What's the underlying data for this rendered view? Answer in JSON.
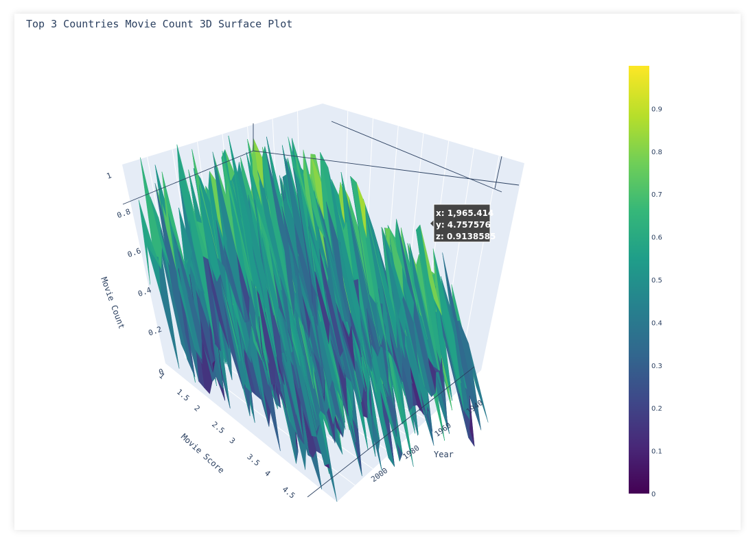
{
  "title": "Top 3 Countries Movie Count 3D Surface Plot",
  "chart_data": {
    "type": "surface",
    "title": "Top 3 Countries Movie Count 3D Surface Plot",
    "x_axis": {
      "label": "Year",
      "range": [
        1930,
        2010
      ],
      "ticks": [
        "1940",
        "1960",
        "1980",
        "2000"
      ]
    },
    "y_axis": {
      "label": "Movie Score",
      "range": [
        1,
        4.8
      ],
      "ticks": [
        "1",
        "1.5",
        "2",
        "2.5",
        "3",
        "3.5",
        "4",
        "4.5"
      ]
    },
    "z_axis": {
      "label": "Movie Count",
      "range": [
        0,
        1
      ],
      "ticks": [
        "0",
        "0.2",
        "0.4",
        "0.6",
        "0.8",
        "1"
      ]
    },
    "colorscale": "Viridis",
    "colorbar": {
      "range": [
        0,
        1
      ],
      "ticks": [
        "0",
        "0.1",
        "0.2",
        "0.3",
        "0.4",
        "0.5",
        "0.6",
        "0.7",
        "0.8",
        "0.9"
      ]
    },
    "grid": true,
    "hover": {
      "x": "x: 1,965.414",
      "y": "y: 4.757576",
      "z": "z: 0.9138585"
    }
  }
}
